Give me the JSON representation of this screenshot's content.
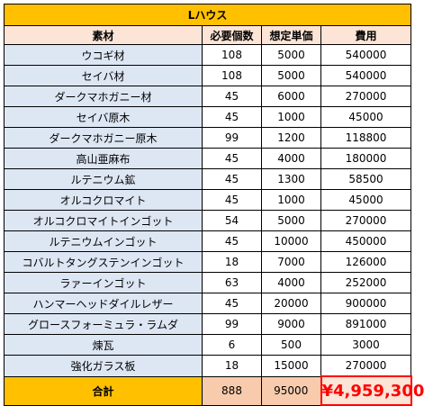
{
  "title": "Lハウス",
  "headers": [
    "素材",
    "必要個数",
    "想定単価",
    "費用"
  ],
  "rows": [
    {
      "name": "ウコギ材",
      "qty": "108",
      "price": "5000",
      "cost": "540000"
    },
    {
      "name": "セイバ材",
      "qty": "108",
      "price": "5000",
      "cost": "540000"
    },
    {
      "name": "ダークマホガニー材",
      "qty": "45",
      "price": "6000",
      "cost": "270000"
    },
    {
      "name": "セイバ原木",
      "qty": "45",
      "price": "1000",
      "cost": "45000"
    },
    {
      "name": "ダークマホガニー原木",
      "qty": "99",
      "price": "1200",
      "cost": "118800"
    },
    {
      "name": "高山亜麻布",
      "qty": "45",
      "price": "4000",
      "cost": "180000"
    },
    {
      "name": "ルテニウム鉱",
      "qty": "45",
      "price": "1300",
      "cost": "58500"
    },
    {
      "name": "オルコクロマイト",
      "qty": "45",
      "price": "1000",
      "cost": "45000"
    },
    {
      "name": "オルコクロマイトインゴット",
      "qty": "54",
      "price": "5000",
      "cost": "270000"
    },
    {
      "name": "ルテニウムインゴット",
      "qty": "45",
      "price": "10000",
      "cost": "450000"
    },
    {
      "name": "コバルトタングステンインゴット",
      "qty": "18",
      "price": "7000",
      "cost": "126000"
    },
    {
      "name": "ラァーインゴット",
      "qty": "63",
      "price": "4000",
      "cost": "252000"
    },
    {
      "name": "ハンマーヘッドダイルレザー",
      "qty": "45",
      "price": "20000",
      "cost": "900000"
    },
    {
      "name": "グロースフォーミュラ・ラムダ",
      "qty": "99",
      "price": "9000",
      "cost": "891000"
    },
    {
      "name": "煉瓦",
      "qty": "6",
      "price": "500",
      "cost": "3000"
    },
    {
      "name": "強化ガラス板",
      "qty": "18",
      "price": "15000",
      "cost": "270000"
    }
  ],
  "total": {
    "label": "合計",
    "qty": "888",
    "price": "95000",
    "cost": "¥4,959,300"
  },
  "colors": {
    "title_bg": "#ffc000",
    "header_bg": "#fce4d6",
    "name_bg": "#dde6f3",
    "total_peach": "#f8cbad",
    "grand_total_text": "#ff0000"
  }
}
